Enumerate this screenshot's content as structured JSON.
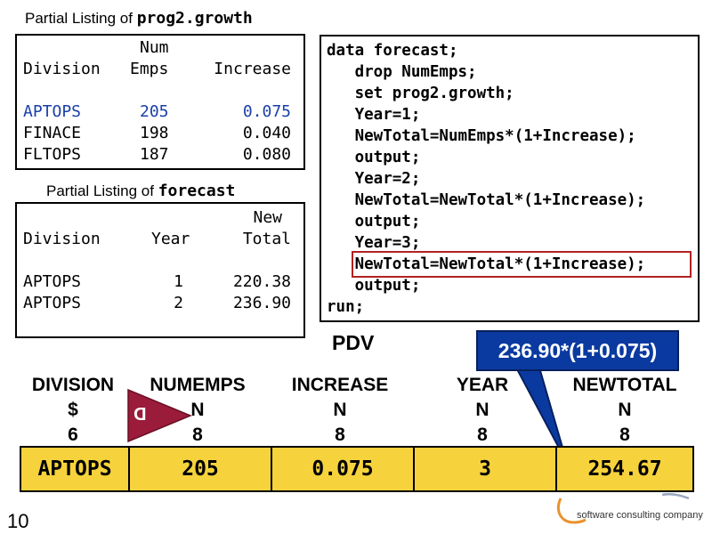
{
  "listing1": {
    "caption_prefix": "Partial Listing of ",
    "caption_name": "prog2.growth",
    "header": {
      "num": "Num",
      "division": "Division",
      "emps": "Emps",
      "increase": "Increase"
    },
    "rows": [
      {
        "division": "APTOPS",
        "numemps": "205",
        "increase": "0.075",
        "highlight": true
      },
      {
        "division": "FINACE",
        "numemps": "198",
        "increase": "0.040",
        "highlight": false
      },
      {
        "division": "FLTOPS",
        "numemps": "187",
        "increase": "0.080",
        "highlight": false
      }
    ]
  },
  "listing2": {
    "caption_prefix": "Partial Listing of ",
    "caption_name": "forecast",
    "header": {
      "new": "New",
      "division": "Division",
      "year": "Year",
      "total": "Total"
    },
    "rows": [
      {
        "division": "APTOPS",
        "year": "1",
        "newtotal": "220.38"
      },
      {
        "division": "APTOPS",
        "year": "2",
        "newtotal": "236.90"
      }
    ]
  },
  "code": {
    "lines": [
      "data forecast;",
      "   drop NumEmps;",
      "   set prog2.growth;",
      "   Year=1;",
      "   NewTotal=NumEmps*(1+Increase);",
      "   output;",
      "   Year=2;",
      "   NewTotal=NewTotal*(1+Increase);",
      "   output;",
      "   Year=3;",
      "   NewTotal=NewTotal*(1+Increase);",
      "   output;",
      "run;"
    ],
    "highlighted_line": 10
  },
  "pdv": {
    "label": "PDV",
    "columns": [
      {
        "name": "DIVISION",
        "type": "$",
        "length": "6",
        "value": "APTOPS"
      },
      {
        "name": "NUMEMPS",
        "type": "N",
        "length": "8",
        "value": "205"
      },
      {
        "name": "INCREASE",
        "type": "N",
        "length": "8",
        "value": "0.075"
      },
      {
        "name": "YEAR",
        "type": "N",
        "length": "8",
        "value": "3"
      },
      {
        "name": "NEWTOTAL",
        "type": "N",
        "length": "8",
        "value": "254.67"
      }
    ],
    "drop_marker": "D"
  },
  "callout": {
    "text": "236.90*(1+0.075)"
  },
  "footer": {
    "slide_number": "10",
    "logo_tagline": "software consulting company"
  },
  "colors": {
    "highlight_text": "#1a3fa8",
    "code_highlight_border": "#b22222",
    "pdv_fill": "#f6d23c",
    "callout_fill": "#0a3aa0",
    "drop_marker_fill": "#9b1b3a",
    "logo_orange": "#e8922e"
  }
}
